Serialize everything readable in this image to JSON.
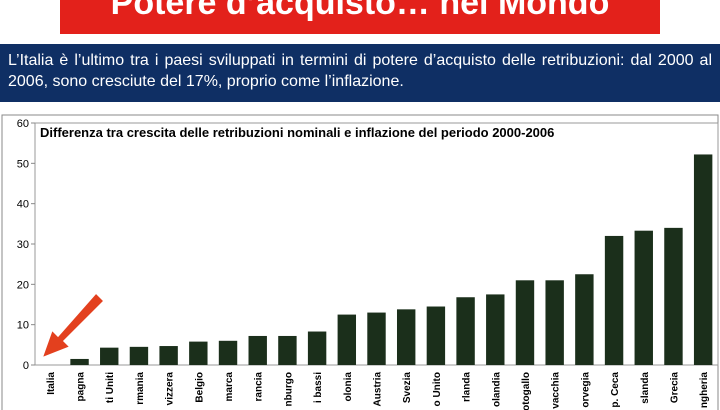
{
  "header": {
    "title": "Potere d’acquisto… nel Mondo",
    "description": "L’Italia è l’ultimo tra i paesi sviluppati in termini di potere d’acquisto delle retribuzioni: dal 2000 al 2006, sono cresciute del 17%, proprio come l’inflazione."
  },
  "chart_data": {
    "type": "bar",
    "title": "Differenza tra crescita delle retribuzioni nominali e inflazione del periodo 2000-2006",
    "categories": [
      "Italia",
      "pagna",
      "ti Uniti",
      "rmania",
      "vizzera",
      "Belgio",
      "marca",
      "rancia",
      "nburgo",
      "i bassi",
      "olonia",
      "Austria",
      "Svezia",
      "o Unito",
      "rlanda",
      "olandia",
      "otogallo",
      "vacchia",
      "orvegia",
      "p. Ceca",
      "slanda",
      "Grecia",
      "ngheria"
    ],
    "values": [
      0,
      1.5,
      4.3,
      4.5,
      4.7,
      5.8,
      6,
      7.2,
      7.2,
      8.3,
      12.5,
      13,
      13.8,
      14.5,
      16.8,
      17.5,
      21,
      21,
      22.5,
      32,
      33.3,
      34,
      52.2
    ],
    "color": "#1b2f1b",
    "ylim": [
      0,
      60
    ],
    "yticks": [
      0,
      10,
      20,
      30,
      40,
      50,
      60
    ],
    "grid": false
  }
}
